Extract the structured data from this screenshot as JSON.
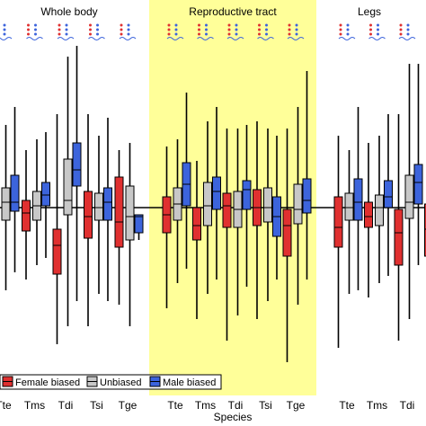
{
  "chart_data": {
    "type": "boxplot",
    "xlabel": "Species",
    "ylabel": "",
    "reference_line": 0,
    "colors": {
      "female": "#e03030",
      "unbiased": "#c8c8c8",
      "male": "#3c64dc",
      "highlight": "#ffff99"
    },
    "legend": {
      "position": "bottom-left",
      "entries": [
        {
          "key": "female",
          "label": "Female biased"
        },
        {
          "key": "unbiased",
          "label": "Unbiased"
        },
        {
          "key": "male",
          "label": "Male biased"
        }
      ]
    },
    "series_order": [
      "female",
      "unbiased",
      "male"
    ],
    "panels": [
      {
        "name": "Whole body",
        "highlighted": false,
        "species": [
          {
            "label": "Tte",
            "show_label": true,
            "boxes": {
              "female": {
                "whisker_low": -3.7,
                "q1": -1.0,
                "median": -0.35,
                "q3": 0.35,
                "whisker_high": 2.5
              },
              "unbiased": {
                "whisker_low": -2.3,
                "q1": -0.35,
                "median": 0.15,
                "q3": 0.55,
                "whisker_high": 2.3
              },
              "male": {
                "whisker_low": -1.8,
                "q1": -0.1,
                "median": 0.15,
                "q3": 0.9,
                "whisker_high": 2.8
              }
            }
          },
          {
            "label": "Tms",
            "show_label": true,
            "boxes": {
              "female": {
                "whisker_low": -2.0,
                "q1": -0.65,
                "median": -0.15,
                "q3": 0.2,
                "whisker_high": 1.6
              },
              "unbiased": {
                "whisker_low": -1.6,
                "q1": -0.35,
                "median": 0.05,
                "q3": 0.45,
                "whisker_high": 1.9
              },
              "male": {
                "whisker_low": -1.4,
                "q1": 0.05,
                "median": 0.35,
                "q3": 0.7,
                "whisker_high": 2.1
              }
            }
          },
          {
            "label": "Tdi",
            "show_label": true,
            "boxes": {
              "female": {
                "whisker_low": -3.8,
                "q1": -1.85,
                "median": -1.05,
                "q3": -0.6,
                "whisker_high": 2.6
              },
              "unbiased": {
                "whisker_low": -3.3,
                "q1": -0.2,
                "median": 0.2,
                "q3": 1.35,
                "whisker_high": 4.2
              },
              "male": {
                "whisker_low": -2.6,
                "q1": 0.6,
                "median": 1.05,
                "q3": 1.8,
                "whisker_high": 4.5
              }
            }
          },
          {
            "label": "Tsi",
            "show_label": true,
            "boxes": {
              "female": {
                "whisker_low": -3.3,
                "q1": -0.85,
                "median": -0.25,
                "q3": 0.45,
                "whisker_high": 2.6
              },
              "unbiased": {
                "whisker_low": -2.4,
                "q1": -0.35,
                "median": 0.0,
                "q3": 0.4,
                "whisker_high": 2.0
              },
              "male": {
                "whisker_low": -2.6,
                "q1": -0.35,
                "median": 0.15,
                "q3": 0.55,
                "whisker_high": 2.5
              }
            }
          },
          {
            "label": "Tge",
            "show_label": true,
            "boxes": {
              "female": {
                "whisker_low": -2.7,
                "q1": -1.1,
                "median": -0.4,
                "q3": 0.85,
                "whisker_high": 1.6
              },
              "unbiased": {
                "whisker_low": -3.3,
                "q1": -0.9,
                "median": -0.25,
                "q3": 0.6,
                "whisker_high": 1.8
              },
              "male": {
                "whisker_low": -0.9,
                "q1": -0.7,
                "median": -0.25,
                "q3": -0.2,
                "whisker_high": -0.2
              }
            }
          }
        ]
      },
      {
        "name": "Reproductive tract",
        "highlighted": true,
        "species": [
          {
            "label": "Tte",
            "show_label": true,
            "boxes": {
              "female": {
                "whisker_low": -2.8,
                "q1": -0.7,
                "median": -0.2,
                "q3": 0.3,
                "whisker_high": 1.7
              },
              "unbiased": {
                "whisker_low": -2.1,
                "q1": -0.35,
                "median": 0.1,
                "q3": 0.55,
                "whisker_high": 1.9
              },
              "male": {
                "whisker_low": -1.7,
                "q1": 0.05,
                "median": 0.65,
                "q3": 1.25,
                "whisker_high": 3.2
              }
            }
          },
          {
            "label": "Tms",
            "show_label": true,
            "boxes": {
              "female": {
                "whisker_low": -3.1,
                "q1": -0.9,
                "median": -0.5,
                "q3": 0.0,
                "whisker_high": 1.3
              },
              "unbiased": {
                "whisker_low": -2.4,
                "q1": -0.5,
                "median": 0.05,
                "q3": 0.7,
                "whisker_high": 2.4
              },
              "male": {
                "whisker_low": -2.0,
                "q1": -0.05,
                "median": 0.45,
                "q3": 0.85,
                "whisker_high": 2.8
              }
            }
          },
          {
            "label": "Tdi",
            "show_label": true,
            "boxes": {
              "female": {
                "whisker_low": -3.7,
                "q1": -0.55,
                "median": 0.05,
                "q3": 0.4,
                "whisker_high": 2.2
              },
              "unbiased": {
                "whisker_low": -3.0,
                "q1": -0.55,
                "median": -0.05,
                "q3": 0.45,
                "whisker_high": 2.2
              },
              "male": {
                "whisker_low": -2.2,
                "q1": -0.05,
                "median": 0.5,
                "q3": 0.75,
                "whisker_high": 2.3
              }
            }
          },
          {
            "label": "Tsi",
            "show_label": true,
            "boxes": {
              "female": {
                "whisker_low": -3.1,
                "q1": -0.5,
                "median": 0.0,
                "q3": 0.5,
                "whisker_high": 2.4
              },
              "unbiased": {
                "whisker_low": -2.6,
                "q1": -0.4,
                "median": 0.0,
                "q3": 0.55,
                "whisker_high": 2.2
              },
              "male": {
                "whisker_low": -2.0,
                "q1": -0.8,
                "median": -0.25,
                "q3": 0.3,
                "whisker_high": 2.0
              }
            }
          },
          {
            "label": "Tge",
            "show_label": true,
            "boxes": {
              "female": {
                "whisker_low": -4.3,
                "q1": -1.35,
                "median": -0.5,
                "q3": -0.05,
                "whisker_high": 2.2
              },
              "unbiased": {
                "whisker_low": -2.7,
                "q1": -0.45,
                "median": -0.05,
                "q3": 0.65,
                "whisker_high": 2.8
              },
              "male": {
                "whisker_low": -2.0,
                "q1": -0.15,
                "median": 0.2,
                "q3": 0.8,
                "whisker_high": 3.8
              }
            }
          }
        ]
      },
      {
        "name": "Legs",
        "highlighted": false,
        "species": [
          {
            "label": "Tte",
            "show_label": true,
            "boxes": {
              "female": {
                "whisker_low": -3.9,
                "q1": -1.1,
                "median": -0.55,
                "q3": 0.3,
                "whisker_high": 2.0
              },
              "unbiased": {
                "whisker_low": -2.4,
                "q1": -0.35,
                "median": 0.0,
                "q3": 0.4,
                "whisker_high": 1.6
              },
              "male": {
                "whisker_low": -2.3,
                "q1": -0.35,
                "median": 0.15,
                "q3": 0.8,
                "whisker_high": 2.8
              }
            }
          },
          {
            "label": "Tms",
            "show_label": true,
            "boxes": {
              "female": {
                "whisker_low": -2.5,
                "q1": -0.55,
                "median": -0.25,
                "q3": 0.15,
                "whisker_high": 1.8
              },
              "unbiased": {
                "whisker_low": -2.1,
                "q1": -0.5,
                "median": 0.0,
                "q3": 0.35,
                "whisker_high": 2.0
              },
              "male": {
                "whisker_low": -1.9,
                "q1": 0.0,
                "median": 0.3,
                "q3": 0.75,
                "whisker_high": 2.6
              }
            }
          },
          {
            "label": "Tdi",
            "show_label": true,
            "boxes": {
              "female": {
                "whisker_low": -3.7,
                "q1": -1.6,
                "median": -0.7,
                "q3": -0.05,
                "whisker_high": 2.6
              },
              "unbiased": {
                "whisker_low": -3.1,
                "q1": -0.3,
                "median": 0.15,
                "q3": 0.9,
                "whisker_high": 4.0
              },
              "male": {
                "whisker_low": -1.6,
                "q1": 0.1,
                "median": 0.7,
                "q3": 1.2,
                "whisker_high": 4.0
              }
            }
          },
          {
            "label": "",
            "show_label": false,
            "boxes": {
              "female": {
                "whisker_low": -4.2,
                "q1": -1.35,
                "median": -0.6,
                "q3": 0.1,
                "whisker_high": 1.8
              }
            }
          }
        ]
      }
    ]
  }
}
